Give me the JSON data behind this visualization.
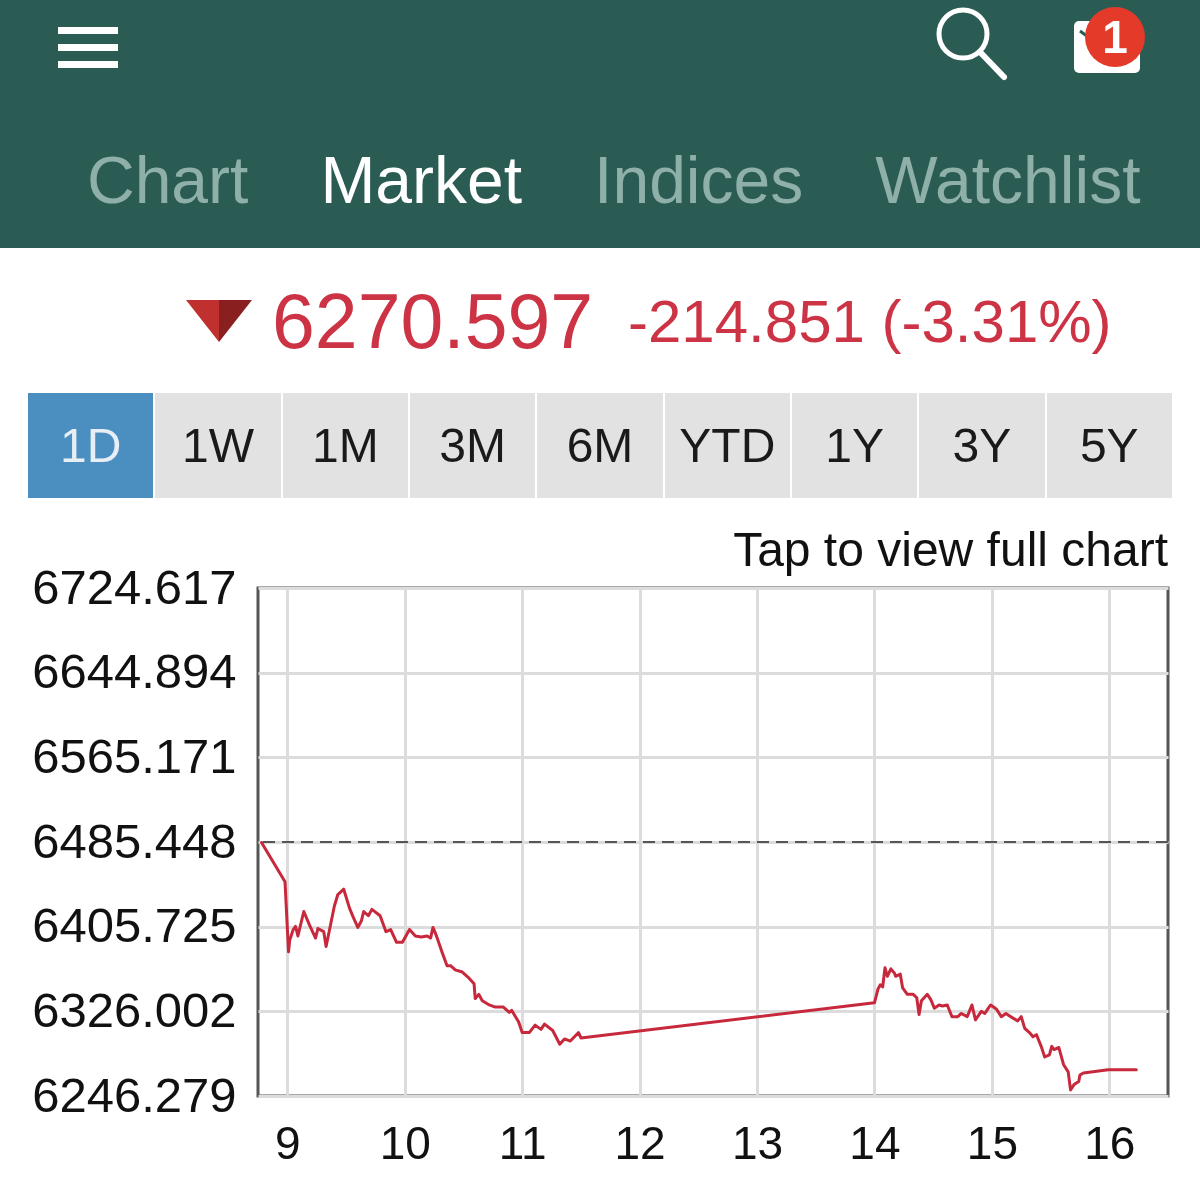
{
  "chart_data": {
    "type": "line",
    "title": "6270.597",
    "subtitle": "-214.851 (-3.31%)",
    "annotations": [
      "Chart",
      "Market",
      "Indices",
      "Watchlist",
      "1",
      "1D",
      "1W",
      "1M",
      "3M",
      "6M",
      "YTD",
      "1Y",
      "3Y",
      "5Y",
      "Tap to view full chart"
    ],
    "x": [
      8.78,
      8.98,
      9.01,
      9.02,
      9.05,
      9.07,
      9.09,
      9.14,
      9.19,
      9.24,
      9.26,
      9.31,
      9.33,
      9.4,
      9.43,
      9.48,
      9.53,
      9.56,
      9.6,
      9.63,
      9.65,
      9.69,
      9.72,
      9.79,
      9.84,
      9.88,
      9.93,
      9.98,
      10.04,
      10.09,
      10.14,
      10.19,
      10.22,
      10.24,
      10.27,
      10.32,
      10.36,
      10.39,
      10.43,
      10.49,
      10.54,
      10.59,
      10.6,
      10.63,
      10.66,
      10.72,
      10.77,
      10.84,
      10.89,
      10.91,
      10.97,
      11.0,
      11.06,
      11.11,
      11.16,
      11.19,
      11.26,
      11.32,
      11.36,
      11.41,
      11.48,
      11.5,
      14.0,
      14.03,
      14.05,
      14.07,
      14.09,
      14.11,
      14.14,
      14.17,
      14.18,
      14.22,
      14.24,
      14.28,
      14.33,
      14.36,
      14.38,
      14.4,
      14.45,
      14.48,
      14.51,
      14.55,
      14.58,
      14.62,
      14.66,
      14.71,
      14.74,
      14.79,
      14.83,
      14.86,
      14.91,
      14.94,
      14.97,
      14.99,
      15.04,
      15.08,
      15.12,
      15.16,
      15.22,
      15.25,
      15.28,
      15.32,
      15.35,
      15.38,
      15.42,
      15.45,
      15.49,
      15.51,
      15.53,
      15.57,
      15.61,
      15.65,
      15.67,
      15.7,
      15.74,
      15.75,
      15.78,
      15.99,
      16.23
    ],
    "values": [
      6485,
      6448,
      6382,
      6393,
      6403,
      6406,
      6397,
      6420,
      6407,
      6395,
      6404,
      6401,
      6387,
      6425,
      6436,
      6441,
      6423,
      6415,
      6405,
      6411,
      6420,
      6416,
      6422,
      6416,
      6401,
      6403,
      6391,
      6391,
      6403,
      6397,
      6396,
      6397,
      6395,
      6405,
      6397,
      6381,
      6369,
      6369,
      6365,
      6363,
      6358,
      6352,
      6338,
      6342,
      6336,
      6332,
      6330,
      6330,
      6325,
      6327,
      6316,
      6306,
      6306,
      6313,
      6309,
      6314,
      6308,
      6295,
      6300,
      6298,
      6306,
      6301,
      6334,
      6347,
      6351,
      6349,
      6367,
      6359,
      6366,
      6362,
      6359,
      6361,
      6348,
      6342,
      6342,
      6339,
      6323,
      6336,
      6342,
      6337,
      6329,
      6332,
      6331,
      6332,
      6321,
      6321,
      6324,
      6321,
      6332,
      6318,
      6326,
      6324,
      6329,
      6332,
      6328,
      6321,
      6324,
      6321,
      6317,
      6321,
      6310,
      6306,
      6302,
      6304,
      6293,
      6283,
      6285,
      6293,
      6290,
      6292,
      6276,
      6269,
      6252,
      6257,
      6260,
      6266,
      6268,
      6271,
      6271
    ],
    "color": "#c8283c",
    "xlim": [
      8.75,
      16.5
    ],
    "xticks": [
      9,
      10,
      11,
      12,
      13,
      14,
      15,
      16
    ],
    "ylim": [
      6246.279,
      6724.617
    ],
    "yticks": [
      6246.279,
      6326.002,
      6405.725,
      6485.448,
      6565.171,
      6644.894,
      6724.617
    ],
    "grid": true,
    "ref_lines": [
      {
        "axis": "y",
        "value": 6485.448,
        "color": "#555555",
        "line_style": "dashed"
      }
    ]
  }
}
